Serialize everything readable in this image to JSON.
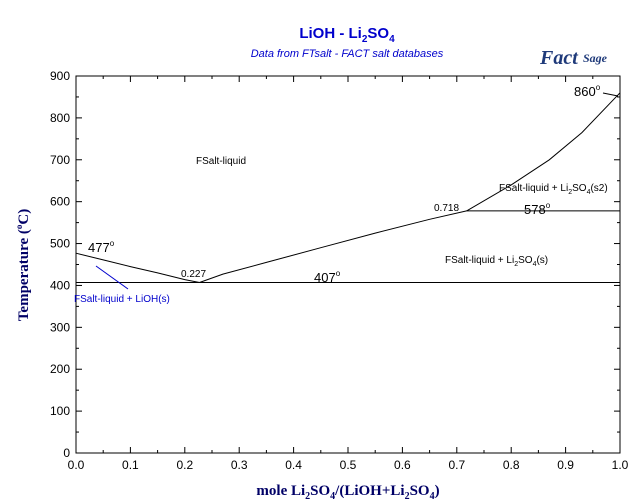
{
  "chart_data": {
    "type": "line",
    "title": "LiOH - Li",
    "title_sub": "2",
    "title_end": "SO",
    "title_sub2": "4",
    "subtitle": "Data from FTsalt - FACT salt databases",
    "logo": {
      "main": "Fact",
      "rest": "Sage"
    },
    "ylabel": "Temperature (",
    "ylabel_deg": "o",
    "ylabel_end": "C)",
    "xlabel": {
      "a": "mole Li",
      "b": "2",
      "c": "SO",
      "d": "4",
      "e": "/(LiOH+Li",
      "f": "2",
      "g": "SO",
      "h": "4",
      "i": ")"
    },
    "xlim": [
      0,
      1
    ],
    "ylim": [
      0,
      900
    ],
    "x_ticks": [
      "0.0",
      "0.1",
      "0.2",
      "0.3",
      "0.4",
      "0.5",
      "0.6",
      "0.7",
      "0.8",
      "0.9",
      "1.0"
    ],
    "y_ticks": [
      "0",
      "100",
      "200",
      "300",
      "400",
      "500",
      "600",
      "700",
      "800",
      "900"
    ],
    "colors": {
      "axis": "#000000",
      "title": "#0000cc",
      "label": "#000066",
      "annotation": "#0000cc"
    },
    "series": [
      {
        "values": [
          [
            0,
            477
          ],
          [
            0.05,
            461
          ],
          [
            0.1,
            445
          ],
          [
            0.15,
            430
          ],
          [
            0.2,
            414
          ],
          [
            0.227,
            407
          ]
        ]
      },
      {
        "values": [
          [
            0.227,
            407
          ],
          [
            0.27,
            427
          ],
          [
            0.35,
            455
          ],
          [
            0.45,
            490
          ],
          [
            0.55,
            525
          ],
          [
            0.65,
            558
          ],
          [
            0.718,
            578
          ]
        ]
      },
      {
        "values": [
          [
            0.718,
            578
          ],
          [
            0.8,
            640
          ],
          [
            0.87,
            700
          ],
          [
            0.93,
            765
          ],
          [
            1.0,
            860
          ]
        ]
      },
      {
        "values": [
          [
            0,
            407
          ],
          [
            1.0,
            407
          ]
        ]
      },
      {
        "values": [
          [
            0.718,
            578
          ],
          [
            1.0,
            578
          ]
        ]
      }
    ],
    "annotations": {
      "t477": "477",
      "t860": "860",
      "t578": "578",
      "t407": "407",
      "x0227": "0.227",
      "x0718": "0.718",
      "deg": "o",
      "region_liquid": "FSalt-liquid",
      "region_s2": {
        "a": "FSalt-liquid + Li",
        "b": "2",
        "c": "SO",
        "d": "4",
        "e": "(s2)"
      },
      "region_s": {
        "a": "FSalt-liquid + Li",
        "b": "2",
        "c": "SO",
        "d": "4",
        "e": "(s)"
      },
      "region_lioh": "FSalt-liquid + LiOH(s)"
    }
  }
}
